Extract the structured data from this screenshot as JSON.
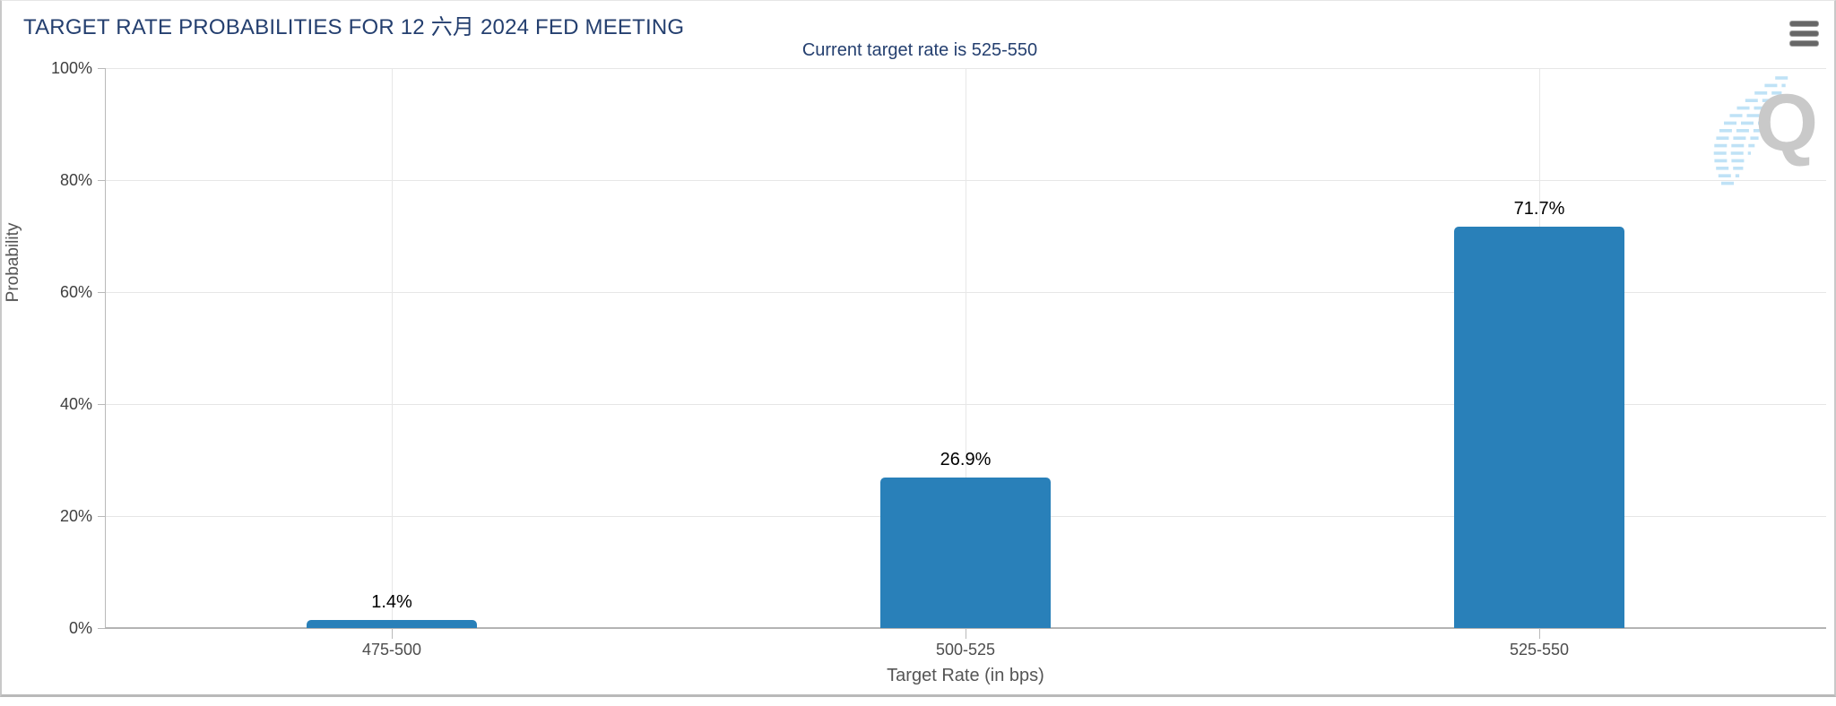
{
  "header": {
    "context_menu_icon": "hamburger-icon"
  },
  "watermark": {
    "letter": "Q"
  },
  "chart_data": {
    "type": "bar",
    "title": "TARGET RATE PROBABILITIES FOR 12 六月 2024 FED MEETING",
    "subtitle": "Current target rate is 525-550",
    "categories": [
      "475-500",
      "500-525",
      "525-550"
    ],
    "values": [
      1.4,
      26.9,
      71.7
    ],
    "value_labels": [
      "1.4%",
      "26.9%",
      "71.7%"
    ],
    "xlabel": "Target Rate (in bps)",
    "ylabel": "Probability",
    "ylim": [
      0,
      100
    ],
    "yticks": [
      0,
      20,
      40,
      60,
      80,
      100
    ],
    "ytick_labels": [
      "0%",
      "20%",
      "40%",
      "60%",
      "80%",
      "100%"
    ],
    "grid": true,
    "legend": "none",
    "bar_color": "#2980b9",
    "title_color": "#243f6f"
  }
}
